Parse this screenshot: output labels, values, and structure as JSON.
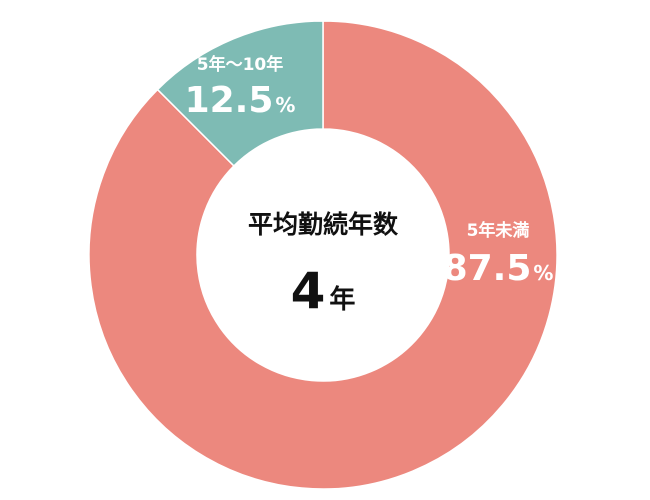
{
  "chart_data": {
    "type": "pie",
    "style": "donut",
    "center_label": "平均勤続年数",
    "center_value": "4",
    "center_unit": "年",
    "unit_suffix": "%",
    "slices": [
      {
        "label": "5年未満",
        "value": 87.5,
        "value_text": "87.5",
        "color": "#ec887e"
      },
      {
        "label": "5年～10年",
        "value": 12.5,
        "value_text": "12.5",
        "color": "#7ebbb4"
      }
    ]
  }
}
